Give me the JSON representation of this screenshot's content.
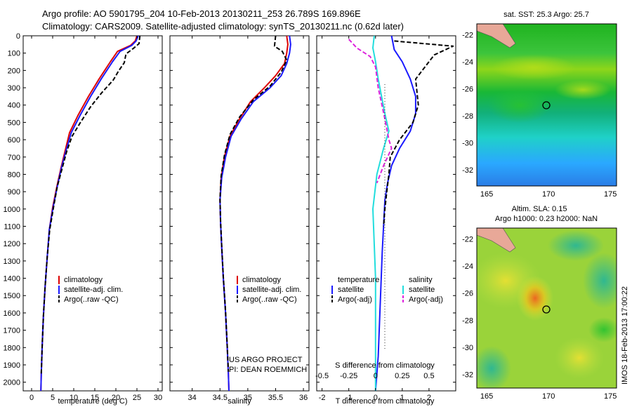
{
  "header": {
    "line1": "Argo profile: AO 5901795_204 10-Feb-2013 20130211_253 26.789S 169.896E",
    "line2": "Climatology: CARS2009. Satellite-adjusted climatology: synTS_20130211.nc (0.62d later)"
  },
  "colors": {
    "climatology": "#dd0000",
    "satellite": "#1a1aff",
    "argo": "#000000",
    "salinity_sat": "#22dddd",
    "salinity_argo": "#dd22dd",
    "land": "#e8a898"
  },
  "chart_data": [
    {
      "type": "line",
      "panel": "temperature",
      "xlabel": "temperature (deg C)",
      "xlim": [
        -2,
        31
      ],
      "ylim": [
        2050,
        0
      ],
      "xticks": [
        "0",
        "5",
        "10",
        "15",
        "20",
        "25",
        "30"
      ],
      "yticks": [
        "0",
        "100",
        "200",
        "300",
        "400",
        "500",
        "600",
        "700",
        "800",
        "900",
        "1000",
        "1100",
        "1200",
        "1300",
        "1400",
        "1500",
        "1600",
        "1700",
        "1800",
        "1900",
        "2000"
      ],
      "series": [
        {
          "name": "climatology",
          "color": "#dd0000",
          "x": [
            25.0,
            24.6,
            23.5,
            20.4,
            18.7,
            16.0,
            13.5,
            11.0,
            9.0,
            8.0,
            7.0,
            6.0,
            5.0,
            4.2,
            3.7,
            3.2,
            2.8,
            2.5,
            2.3,
            2.2
          ],
          "y": [
            0,
            30,
            55,
            90,
            150,
            250,
            350,
            460,
            560,
            660,
            760,
            870,
            990,
            1120,
            1280,
            1450,
            1620,
            1800,
            1950,
            2050
          ]
        },
        {
          "name": "satellite-adj. clim.",
          "color": "#1a1aff",
          "x": [
            25.3,
            24.8,
            23.8,
            21.0,
            19.2,
            16.5,
            14.0,
            11.5,
            9.4,
            8.2,
            7.1,
            6.1,
            5.1,
            4.2,
            3.7,
            3.2,
            2.8,
            2.5,
            2.3,
            2.2
          ],
          "y": [
            0,
            30,
            55,
            90,
            150,
            250,
            350,
            460,
            560,
            660,
            760,
            870,
            990,
            1120,
            1280,
            1450,
            1620,
            1800,
            1950,
            2050
          ]
        },
        {
          "name": "Argo(..raw -QC)",
          "color": "#000000",
          "dash": true,
          "x": [
            25.7,
            25.5,
            24.3,
            22.4,
            22.0,
            20.6,
            19.4,
            16.6,
            14.0,
            11.6,
            9.6,
            8.3,
            7.2,
            6.1,
            5.2,
            4.3,
            3.7,
            3.2,
            2.8,
            2.5,
            2.3
          ],
          "y": [
            0,
            45,
            70,
            105,
            155,
            205,
            255,
            330,
            410,
            500,
            580,
            670,
            770,
            870,
            990,
            1120,
            1280,
            1450,
            1620,
            1800,
            1950
          ]
        }
      ],
      "legend": [
        "climatology",
        "satellite-adj. clim.",
        "Argo(..raw -QC)"
      ],
      "legend_position": "lower-middle"
    },
    {
      "type": "line",
      "panel": "salinity",
      "xlabel": "salinity",
      "xlim": [
        33.6,
        36.1
      ],
      "ylim": [
        2050,
        0
      ],
      "xticks": [
        "34",
        "34.5",
        "35",
        "35.5",
        "36"
      ],
      "annotation": [
        "US ARGO PROJECT",
        "PI: DEAN ROEMMICH"
      ],
      "series": [
        {
          "name": "climatology",
          "color": "#dd0000",
          "x": [
            35.7,
            35.72,
            35.7,
            35.66,
            35.5,
            35.3,
            35.05,
            34.85,
            34.68,
            34.58,
            34.52,
            34.5,
            34.51,
            34.53,
            34.56,
            34.6,
            34.63,
            34.65,
            34.66
          ],
          "y": [
            0,
            50,
            100,
            160,
            230,
            300,
            380,
            480,
            580,
            700,
            820,
            950,
            1080,
            1220,
            1400,
            1600,
            1800,
            1950,
            2050
          ]
        },
        {
          "name": "satellite-adj. clim.",
          "color": "#1a1aff",
          "x": [
            35.75,
            35.77,
            35.75,
            35.7,
            35.6,
            35.4,
            35.1,
            34.88,
            34.7,
            34.6,
            34.53,
            34.5,
            34.51,
            34.53,
            34.56,
            34.6,
            34.63,
            34.65,
            34.66
          ],
          "y": [
            0,
            50,
            100,
            160,
            230,
            300,
            380,
            480,
            580,
            700,
            820,
            950,
            1080,
            1220,
            1400,
            1600,
            1800,
            1950,
            2050
          ]
        },
        {
          "name": "Argo(..raw -QC)",
          "color": "#000000",
          "dash": true,
          "x": [
            35.5,
            35.48,
            35.62,
            35.7,
            35.6,
            35.4,
            35.1,
            34.85,
            34.68,
            34.58,
            34.52,
            34.5,
            34.51,
            34.53,
            34.56,
            34.6,
            34.63,
            34.65
          ],
          "y": [
            0,
            60,
            90,
            140,
            210,
            290,
            370,
            470,
            570,
            690,
            810,
            940,
            1070,
            1210,
            1390,
            1590,
            1790,
            1940
          ]
        }
      ],
      "legend": [
        "climatology",
        "satellite-adj. clim.",
        "Argo(..raw -QC)"
      ],
      "legend_position": "lower-middle"
    },
    {
      "type": "line",
      "panel": "differences",
      "xlabel": "T difference from climatology",
      "xlabel_top": "S difference from climatology",
      "xlim": [
        -2.2,
        3.0
      ],
      "ylim": [
        2050,
        0
      ],
      "xticks": [
        "-2",
        "-1",
        "0",
        "1",
        "2"
      ],
      "xticks_top": [
        "-0.5",
        "-0.25",
        "0",
        "0.25",
        "0.5"
      ],
      "legend_left_title": "temperature",
      "legend_right_title": "salinity",
      "series": [
        {
          "name": "satellite",
          "group": "temperature",
          "color": "#1a1aff",
          "x": [
            0.6,
            0.7,
            1.0,
            1.3,
            1.5,
            1.5,
            1.3,
            0.9,
            0.6,
            0.45,
            0.35,
            0.3,
            0.25,
            0.2,
            0.15,
            0.1,
            0.05,
            0.0
          ],
          "y": [
            0,
            80,
            150,
            250,
            350,
            450,
            550,
            650,
            750,
            850,
            950,
            1100,
            1250,
            1450,
            1650,
            1850,
            1950,
            2050
          ]
        },
        {
          "name": "Argo(-adj)",
          "group": "temperature",
          "color": "#000000",
          "dash": true,
          "x": [
            0.7,
            2.9,
            2.2,
            2.0,
            1.5,
            1.6,
            1.4,
            0.9,
            0.55,
            0.5,
            0.42,
            0.35,
            0.3
          ],
          "y": [
            30,
            60,
            110,
            150,
            250,
            400,
            500,
            600,
            700,
            800,
            900,
            1000,
            1100
          ]
        },
        {
          "name": "satellite",
          "group": "salinity",
          "color": "#22dddd",
          "x": [
            -0.05,
            -0.1,
            0.0,
            0.1,
            0.35,
            0.5,
            0.3,
            0.05,
            -0.1,
            -0.05,
            0.0,
            0.0,
            0.0,
            0.0
          ],
          "y": [
            0,
            70,
            150,
            250,
            450,
            550,
            650,
            800,
            1000,
            1200,
            1400,
            1600,
            1800,
            2050
          ]
        },
        {
          "name": "Argo(-adj)",
          "group": "salinity",
          "color": "#dd22dd",
          "dash": true,
          "x": [
            -1.0,
            -0.7,
            -0.2,
            0.0,
            0.1,
            0.35,
            0.5,
            0.6,
            0.3,
            0.05
          ],
          "y": [
            20,
            70,
            120,
            180,
            300,
            480,
            600,
            650,
            750,
            850
          ]
        }
      ],
      "legend": [
        "temperature",
        "satellite",
        "Argo(-adj)",
        "salinity",
        "satellite",
        "Argo(-adj)"
      ],
      "legend_position": "lower-middle"
    },
    {
      "type": "heatmap",
      "panel": "sst-map",
      "title": "sat. SST: 25.3 Argo: 25.7",
      "xlim": [
        164.2,
        175.5
      ],
      "ylim": [
        -33.2,
        -21.2
      ],
      "xticks": [
        "165",
        "170",
        "175"
      ],
      "yticks": [
        "-22",
        "-24",
        "-26",
        "-28",
        "-30",
        "-32"
      ],
      "marker": {
        "lon": 169.9,
        "lat": -26.8
      }
    },
    {
      "type": "heatmap",
      "panel": "sla-map",
      "title": "Altim. SLA: 0.15",
      "subtitle": "Argo h1000: 0.23 h2000: NaN",
      "xlim": [
        164.2,
        175.5
      ],
      "ylim": [
        -33.0,
        -21.2
      ],
      "xticks": [
        "165",
        "170",
        "175"
      ],
      "yticks": [
        "-22",
        "-24",
        "-26",
        "-28",
        "-30",
        "-32"
      ],
      "marker": {
        "lon": 169.9,
        "lat": -26.8
      }
    }
  ],
  "footer": {
    "stamp": "IMOS 18-Feb-2013 17:00:22"
  }
}
